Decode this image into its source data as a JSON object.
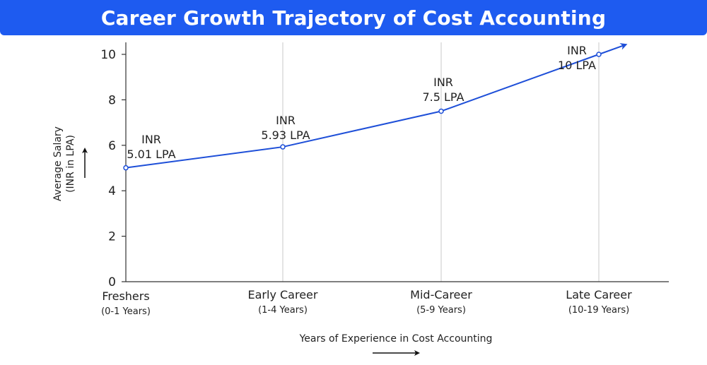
{
  "header": {
    "title": "Career Growth Trajectory of Cost Accounting"
  },
  "chart_data": {
    "type": "line",
    "title": "Career Growth Trajectory of Cost Accounting",
    "categories": [
      "Freshers",
      "Early Career",
      "Mid-Career",
      "Late Career"
    ],
    "category_subtitles": [
      "(0-1 Years)",
      "(1-4 Years)",
      "(5-9 Years)",
      "(10-19 Years)"
    ],
    "series": [
      {
        "values": [
          5.01,
          5.93,
          7.5,
          10
        ]
      }
    ],
    "data_labels": [
      {
        "line1": "INR",
        "line2": "5.01 LPA"
      },
      {
        "line1": "INR",
        "line2": "5.93 LPA"
      },
      {
        "line1": "INR",
        "line2": "7.5 LPA"
      },
      {
        "line1": "INR",
        "line2": "10 LPA"
      }
    ],
    "xlabel": "Years of Experience in Cost Accounting",
    "ylabel_line1": "Average Salary",
    "ylabel_line2": "(INR in LPA)",
    "ylim": [
      0,
      10
    ],
    "yticks": [
      0,
      2,
      4,
      6,
      8,
      10
    ],
    "grid": "vertical",
    "colors": {
      "line": "#1e4fd8",
      "title_bar": "#1e5bf0",
      "grid": "#c8c8c8",
      "axis": "#333333"
    }
  }
}
